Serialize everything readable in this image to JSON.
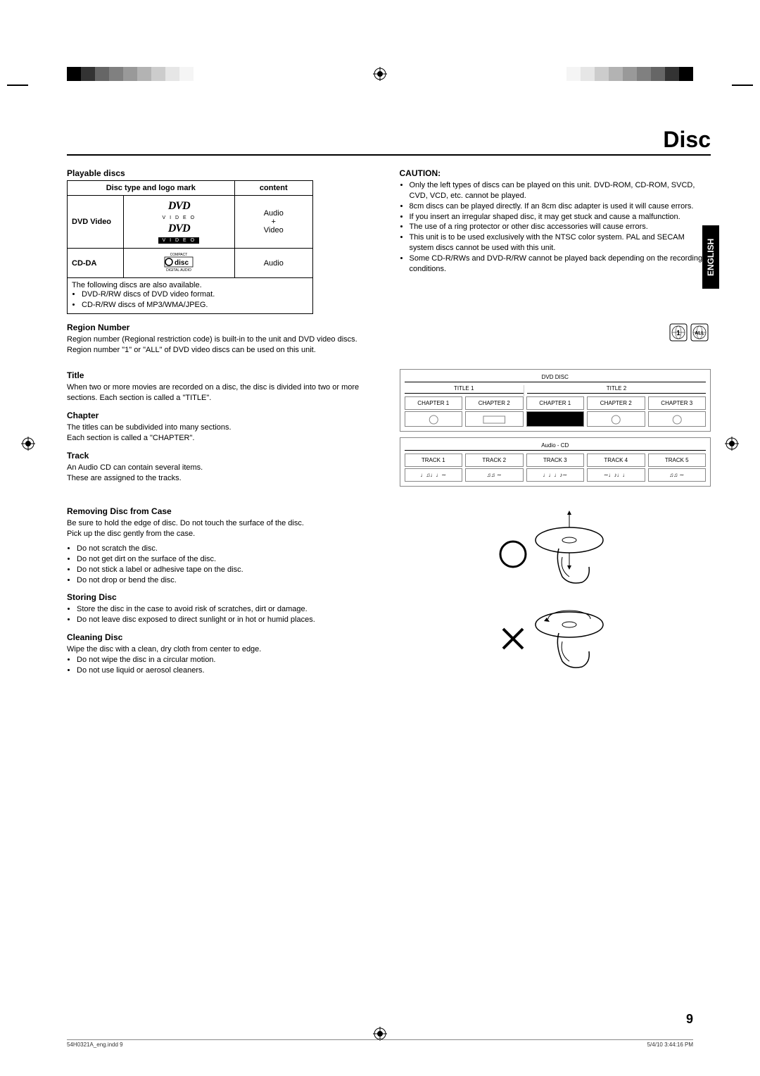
{
  "registration_bar": {
    "colors_left": [
      "#000000",
      "#333333",
      "#666666",
      "#808080",
      "#999999",
      "#b3b3b3",
      "#cccccc",
      "#e6e6e6",
      "#f5f5f5"
    ],
    "colors_right": [
      "#f5f5f5",
      "#e6e6e6",
      "#cccccc",
      "#b3b3b3",
      "#999999",
      "#808080",
      "#666666",
      "#333333",
      "#000000"
    ]
  },
  "page": {
    "title": "Disc",
    "number": "9",
    "language_tab": "ENGLISH"
  },
  "playable": {
    "heading": "Playable discs",
    "col_type": "Disc type and logo mark",
    "col_content": "content",
    "rows": [
      {
        "type": "DVD Video",
        "content": "Audio\n+\nVideo"
      },
      {
        "type": "CD-DA",
        "content": "Audio"
      }
    ],
    "notes_intro": "The following discs are also available.",
    "notes": [
      "DVD-R/RW discs of DVD video format.",
      "CD-R/RW discs of MP3/WMA/JPEG."
    ]
  },
  "caution": {
    "heading": "CAUTION:",
    "items": [
      "Only the left types of discs can be played on this unit. DVD-ROM, CD-ROM, SVCD, CVD, VCD, etc. cannot be played.",
      "8cm discs can be played directly. If an 8cm disc adapter is used it will cause errors.",
      "If you insert an irregular shaped disc, it may get stuck and cause a malfunction.",
      "The use of a ring protector or other disc accessories will cause errors.",
      "This unit is to be used exclusively with the NTSC color system. PAL and SECAM system discs cannot be used with this unit.",
      "Some CD-R/RWs and DVD-R/RW cannot be played back depending on the recording conditions."
    ]
  },
  "region": {
    "heading": "Region Number",
    "text1": "Region number (Regional restriction code) is built-in to the unit and DVD video discs.",
    "text2": "Region number \"1\" or \"ALL\" of DVD video discs can be used on this unit."
  },
  "title_sec": {
    "heading": "Title",
    "text": "When two or more movies are recorded on a disc, the disc is divided into two or more sections. Each section is called a \"TITLE\"."
  },
  "chapter_sec": {
    "heading": "Chapter",
    "text": "The titles can be subdivided into many sections.\nEach section is called a \"CHAPTER\"."
  },
  "track_sec": {
    "heading": "Track",
    "text": "An Audio CD can contain several items.\nThese are assigned to the tracks."
  },
  "diagram": {
    "dvd_label": "DVD DISC",
    "titles": [
      "TITLE 1",
      "TITLE 2"
    ],
    "chapters": [
      "CHAPTER 1",
      "CHAPTER 2",
      "CHAPTER 1",
      "CHAPTER 2",
      "CHAPTER 3"
    ],
    "cd_label": "Audio - CD",
    "tracks": [
      "TRACK 1",
      "TRACK 2",
      "TRACK 3",
      "TRACK 4",
      "TRACK 5"
    ]
  },
  "removing": {
    "heading": "Removing Disc from Case",
    "text": "Be sure to hold the edge of disc. Do not touch the surface of the disc.\nPick up the disc gently from the case.",
    "items": [
      "Do not scratch the disc.",
      "Do not get dirt on the surface of the disc.",
      "Do not stick a label or adhesive tape on the disc.",
      "Do not drop or bend the disc."
    ]
  },
  "storing": {
    "heading": "Storing Disc",
    "items": [
      "Store the disc in the case to avoid risk of scratches, dirt or damage.",
      "Do not leave disc exposed to direct sunlight or in hot or humid places."
    ]
  },
  "cleaning": {
    "heading": "Cleaning Disc",
    "text": "Wipe the disc with a clean, dry cloth from center to edge.",
    "items": [
      "Do not wipe the disc in a circular motion.",
      "Do not use liquid or aerosol cleaners."
    ]
  },
  "footer": {
    "file": "54H0321A_eng.indd   9",
    "timestamp": "5/4/10   3:44:16 PM"
  }
}
